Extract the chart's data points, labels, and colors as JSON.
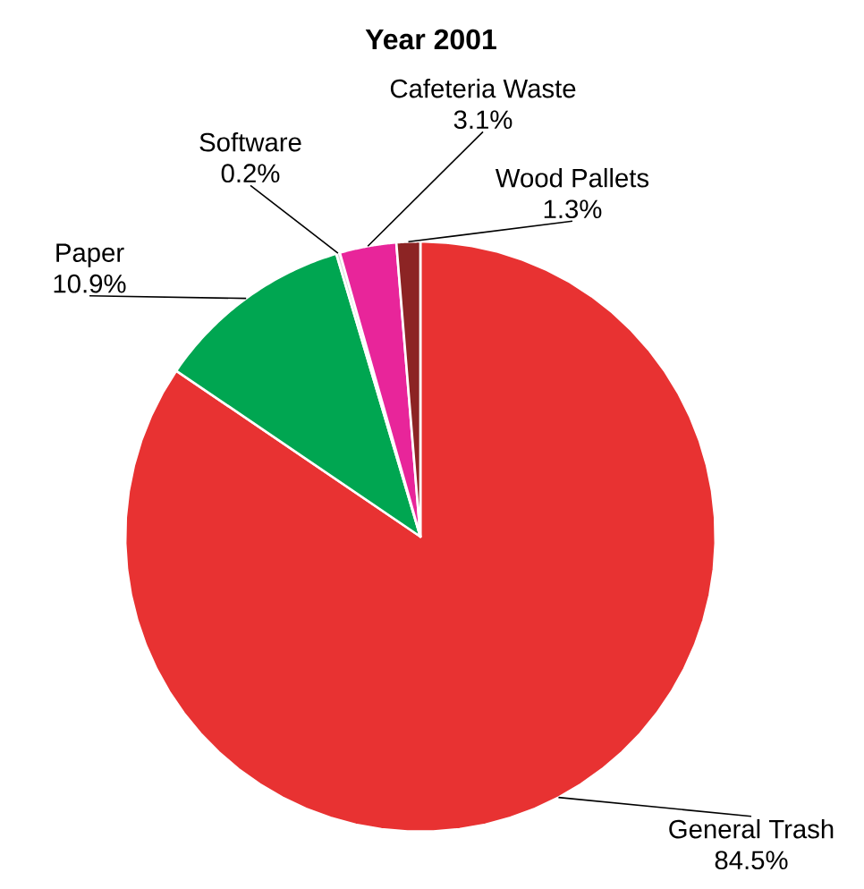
{
  "chart_data": {
    "type": "pie",
    "title": "Year 2001",
    "categories": [
      "General Trash",
      "Paper",
      "Software",
      "Cafeteria Waste",
      "Wood Pallets"
    ],
    "values": [
      84.5,
      10.9,
      0.2,
      3.1,
      1.3
    ],
    "value_labels": [
      "84.5%",
      "10.9%",
      "0.2%",
      "3.1%",
      "1.3%"
    ],
    "colors": [
      "#e83232",
      "#00a651",
      "#d8d8d8",
      "#e8259a",
      "#8c2424"
    ]
  }
}
